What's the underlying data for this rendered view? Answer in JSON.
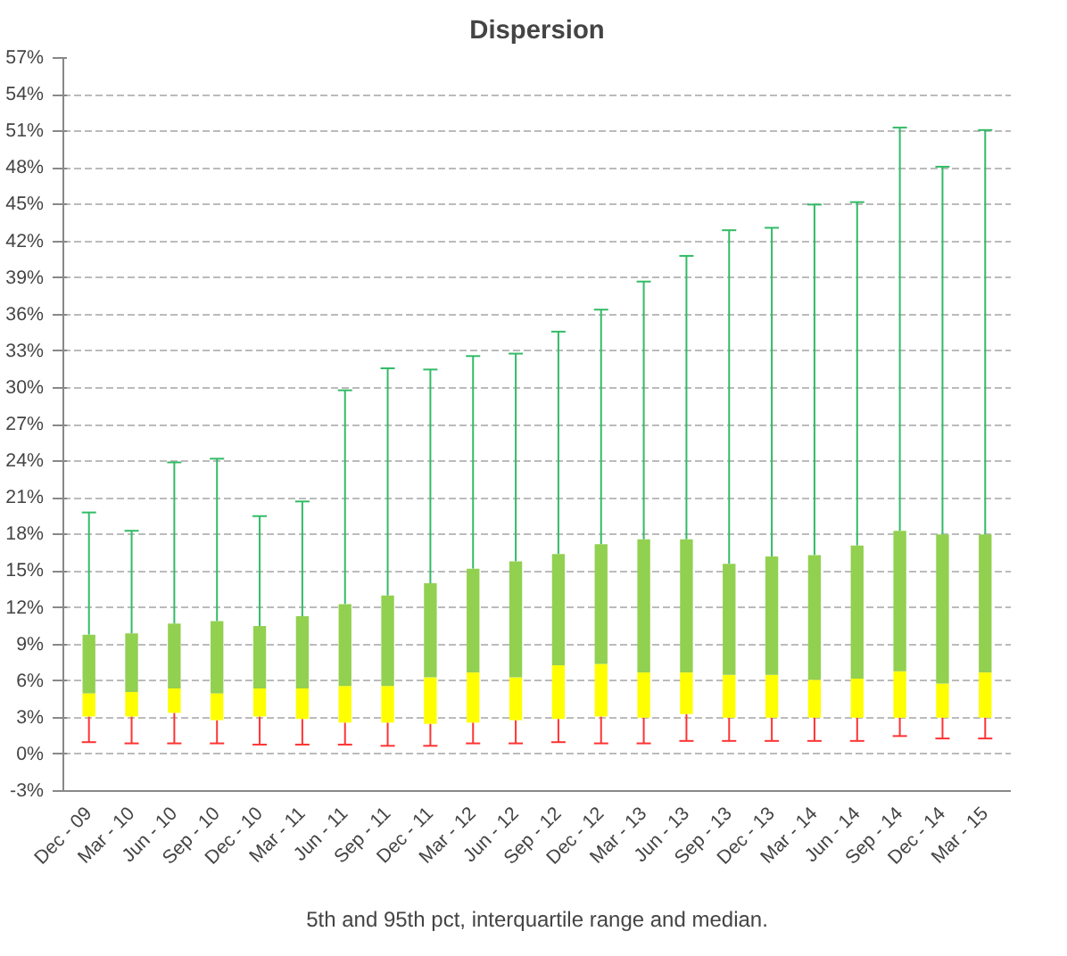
{
  "chart_data": {
    "type": "box",
    "title": "Dispersion",
    "annotations": [
      "5th and 95th pct, interquartile range and median."
    ],
    "categories": [
      "Dec - 09",
      "Mar - 10",
      "Jun - 10",
      "Sep - 10",
      "Dec - 10",
      "Mar - 11",
      "Jun - 11",
      "Sep - 11",
      "Dec - 11",
      "Mar - 12",
      "Jun - 12",
      "Sep - 12",
      "Dec - 12",
      "Mar - 13",
      "Jun - 13",
      "Sep - 13",
      "Dec - 13",
      "Mar - 14",
      "Jun - 14",
      "Sep - 14",
      "Dec - 14",
      "Mar - 15"
    ],
    "series": [
      {
        "boxes": [
          {
            "low": 1.0,
            "q1": 3.1,
            "median": 5.0,
            "q3": 9.8,
            "high": 19.8
          },
          {
            "low": 0.9,
            "q1": 3.1,
            "median": 5.1,
            "q3": 9.9,
            "high": 18.3
          },
          {
            "low": 0.9,
            "q1": 3.4,
            "median": 5.4,
            "q3": 10.7,
            "high": 23.9
          },
          {
            "low": 0.9,
            "q1": 2.8,
            "median": 5.0,
            "q3": 10.9,
            "high": 24.2
          },
          {
            "low": 0.8,
            "q1": 3.1,
            "median": 5.4,
            "q3": 10.5,
            "high": 19.5
          },
          {
            "low": 0.8,
            "q1": 2.9,
            "median": 5.4,
            "q3": 11.3,
            "high": 20.7
          },
          {
            "low": 0.8,
            "q1": 2.6,
            "median": 5.6,
            "q3": 12.3,
            "high": 29.8
          },
          {
            "low": 0.7,
            "q1": 2.6,
            "median": 5.6,
            "q3": 13.0,
            "high": 31.6
          },
          {
            "low": 0.7,
            "q1": 2.5,
            "median": 6.3,
            "q3": 14.0,
            "high": 31.5
          },
          {
            "low": 0.9,
            "q1": 2.6,
            "median": 6.7,
            "q3": 15.2,
            "high": 32.6
          },
          {
            "low": 0.9,
            "q1": 2.8,
            "median": 6.3,
            "q3": 15.8,
            "high": 32.8
          },
          {
            "low": 1.0,
            "q1": 2.9,
            "median": 7.3,
            "q3": 16.4,
            "high": 34.6
          },
          {
            "low": 0.9,
            "q1": 3.1,
            "median": 7.4,
            "q3": 17.2,
            "high": 36.4
          },
          {
            "low": 0.9,
            "q1": 3.0,
            "median": 6.7,
            "q3": 17.6,
            "high": 38.7
          },
          {
            "low": 1.1,
            "q1": 3.3,
            "median": 6.7,
            "q3": 17.6,
            "high": 40.8
          },
          {
            "low": 1.1,
            "q1": 3.0,
            "median": 6.5,
            "q3": 15.6,
            "high": 42.9
          },
          {
            "low": 1.1,
            "q1": 3.0,
            "median": 6.5,
            "q3": 16.2,
            "high": 43.1
          },
          {
            "low": 1.1,
            "q1": 3.0,
            "median": 6.1,
            "q3": 16.3,
            "high": 45.0
          },
          {
            "low": 1.1,
            "q1": 3.0,
            "median": 6.2,
            "q3": 17.1,
            "high": 45.2
          },
          {
            "low": 1.5,
            "q1": 3.0,
            "median": 6.8,
            "q3": 18.3,
            "high": 51.3
          },
          {
            "low": 1.3,
            "q1": 3.0,
            "median": 5.8,
            "q3": 18.0,
            "high": 48.1
          },
          {
            "low": 1.3,
            "q1": 3.0,
            "median": 6.7,
            "q3": 18.0,
            "high": 51.1
          }
        ]
      }
    ],
    "ylim": [
      -3,
      57
    ],
    "yticks": [
      {
        "value": -3,
        "label": "-3%"
      },
      {
        "value": 0,
        "label": "0%"
      },
      {
        "value": 3,
        "label": "3%"
      },
      {
        "value": 6,
        "label": "6%"
      },
      {
        "value": 9,
        "label": "9%"
      },
      {
        "value": 12,
        "label": "12%"
      },
      {
        "value": 15,
        "label": "15%"
      },
      {
        "value": 18,
        "label": "18%"
      },
      {
        "value": 21,
        "label": "21%"
      },
      {
        "value": 24,
        "label": "24%"
      },
      {
        "value": 27,
        "label": "27%"
      },
      {
        "value": 30,
        "label": "30%"
      },
      {
        "value": 33,
        "label": "33%"
      },
      {
        "value": 36,
        "label": "36%"
      },
      {
        "value": 39,
        "label": "39%"
      },
      {
        "value": 42,
        "label": "42%"
      },
      {
        "value": 45,
        "label": "45%"
      },
      {
        "value": 48,
        "label": "48%"
      },
      {
        "value": 51,
        "label": "51%"
      },
      {
        "value": 54,
        "label": "54%"
      },
      {
        "value": 57,
        "label": "57%"
      }
    ],
    "grid": "y"
  }
}
